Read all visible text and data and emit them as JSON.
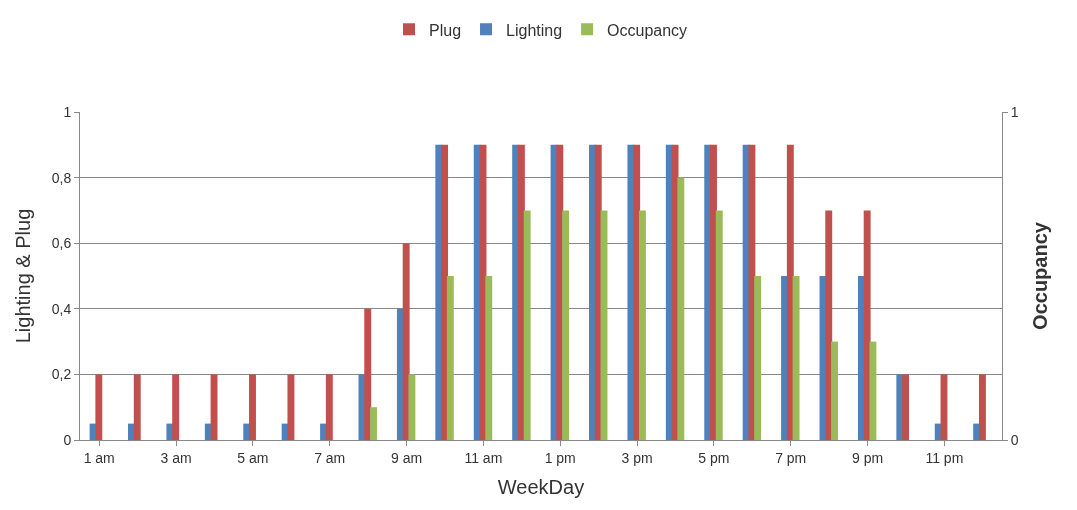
{
  "chart_data": {
    "type": "bar",
    "xlabel": "WeekDay",
    "ylabel": "Lighting & Plug",
    "y2label": "Occupancy",
    "categories": [
      "1 am",
      null,
      "3 am",
      null,
      "5 am",
      null,
      "7 am",
      null,
      "9 am",
      null,
      "11 am",
      null,
      "1 pm",
      null,
      "3 pm",
      null,
      "5 pm",
      null,
      "7 pm",
      null,
      "9 pm",
      null,
      "11 pm",
      null
    ],
    "series": [
      {
        "name": "Plug",
        "color": "#c0504d",
        "values": [
          0.2,
          0.2,
          0.2,
          0.2,
          0.2,
          0.2,
          0.2,
          0.4,
          0.6,
          0.9,
          0.9,
          0.9,
          0.9,
          0.9,
          0.9,
          0.9,
          0.9,
          0.9,
          0.9,
          0.7,
          0.7,
          0.2,
          0.2,
          0.2
        ]
      },
      {
        "name": "Lighting",
        "color": "#4f81bd",
        "values": [
          0.05,
          0.05,
          0.05,
          0.05,
          0.05,
          0.05,
          0.05,
          0.2,
          0.4,
          0.9,
          0.9,
          0.9,
          0.9,
          0.9,
          0.9,
          0.9,
          0.9,
          0.9,
          0.5,
          0.5,
          0.5,
          0.2,
          0.05,
          0.05
        ]
      },
      {
        "name": "Occupancy",
        "color": "#9bbb59",
        "axis": "y2",
        "values": [
          0,
          0,
          0,
          0,
          0,
          0,
          0,
          0.1,
          0.2,
          0.5,
          0.5,
          0.7,
          0.7,
          0.7,
          0.7,
          0.8,
          0.7,
          0.5,
          0.5,
          0.3,
          0.3,
          0,
          0,
          0
        ]
      }
    ],
    "ylim": [
      0,
      1
    ],
    "yticks": [
      0,
      {
        "value": 0.2,
        "label": "0,2"
      },
      {
        "value": 0.4,
        "label": "0,4"
      },
      {
        "value": 0.6,
        "label": "0,6"
      },
      {
        "value": 0.8,
        "label": "0,8"
      },
      1
    ],
    "y2lim": [
      0,
      1
    ],
    "y2ticks": [
      0,
      1
    ],
    "grid": "y",
    "legend": "top"
  }
}
